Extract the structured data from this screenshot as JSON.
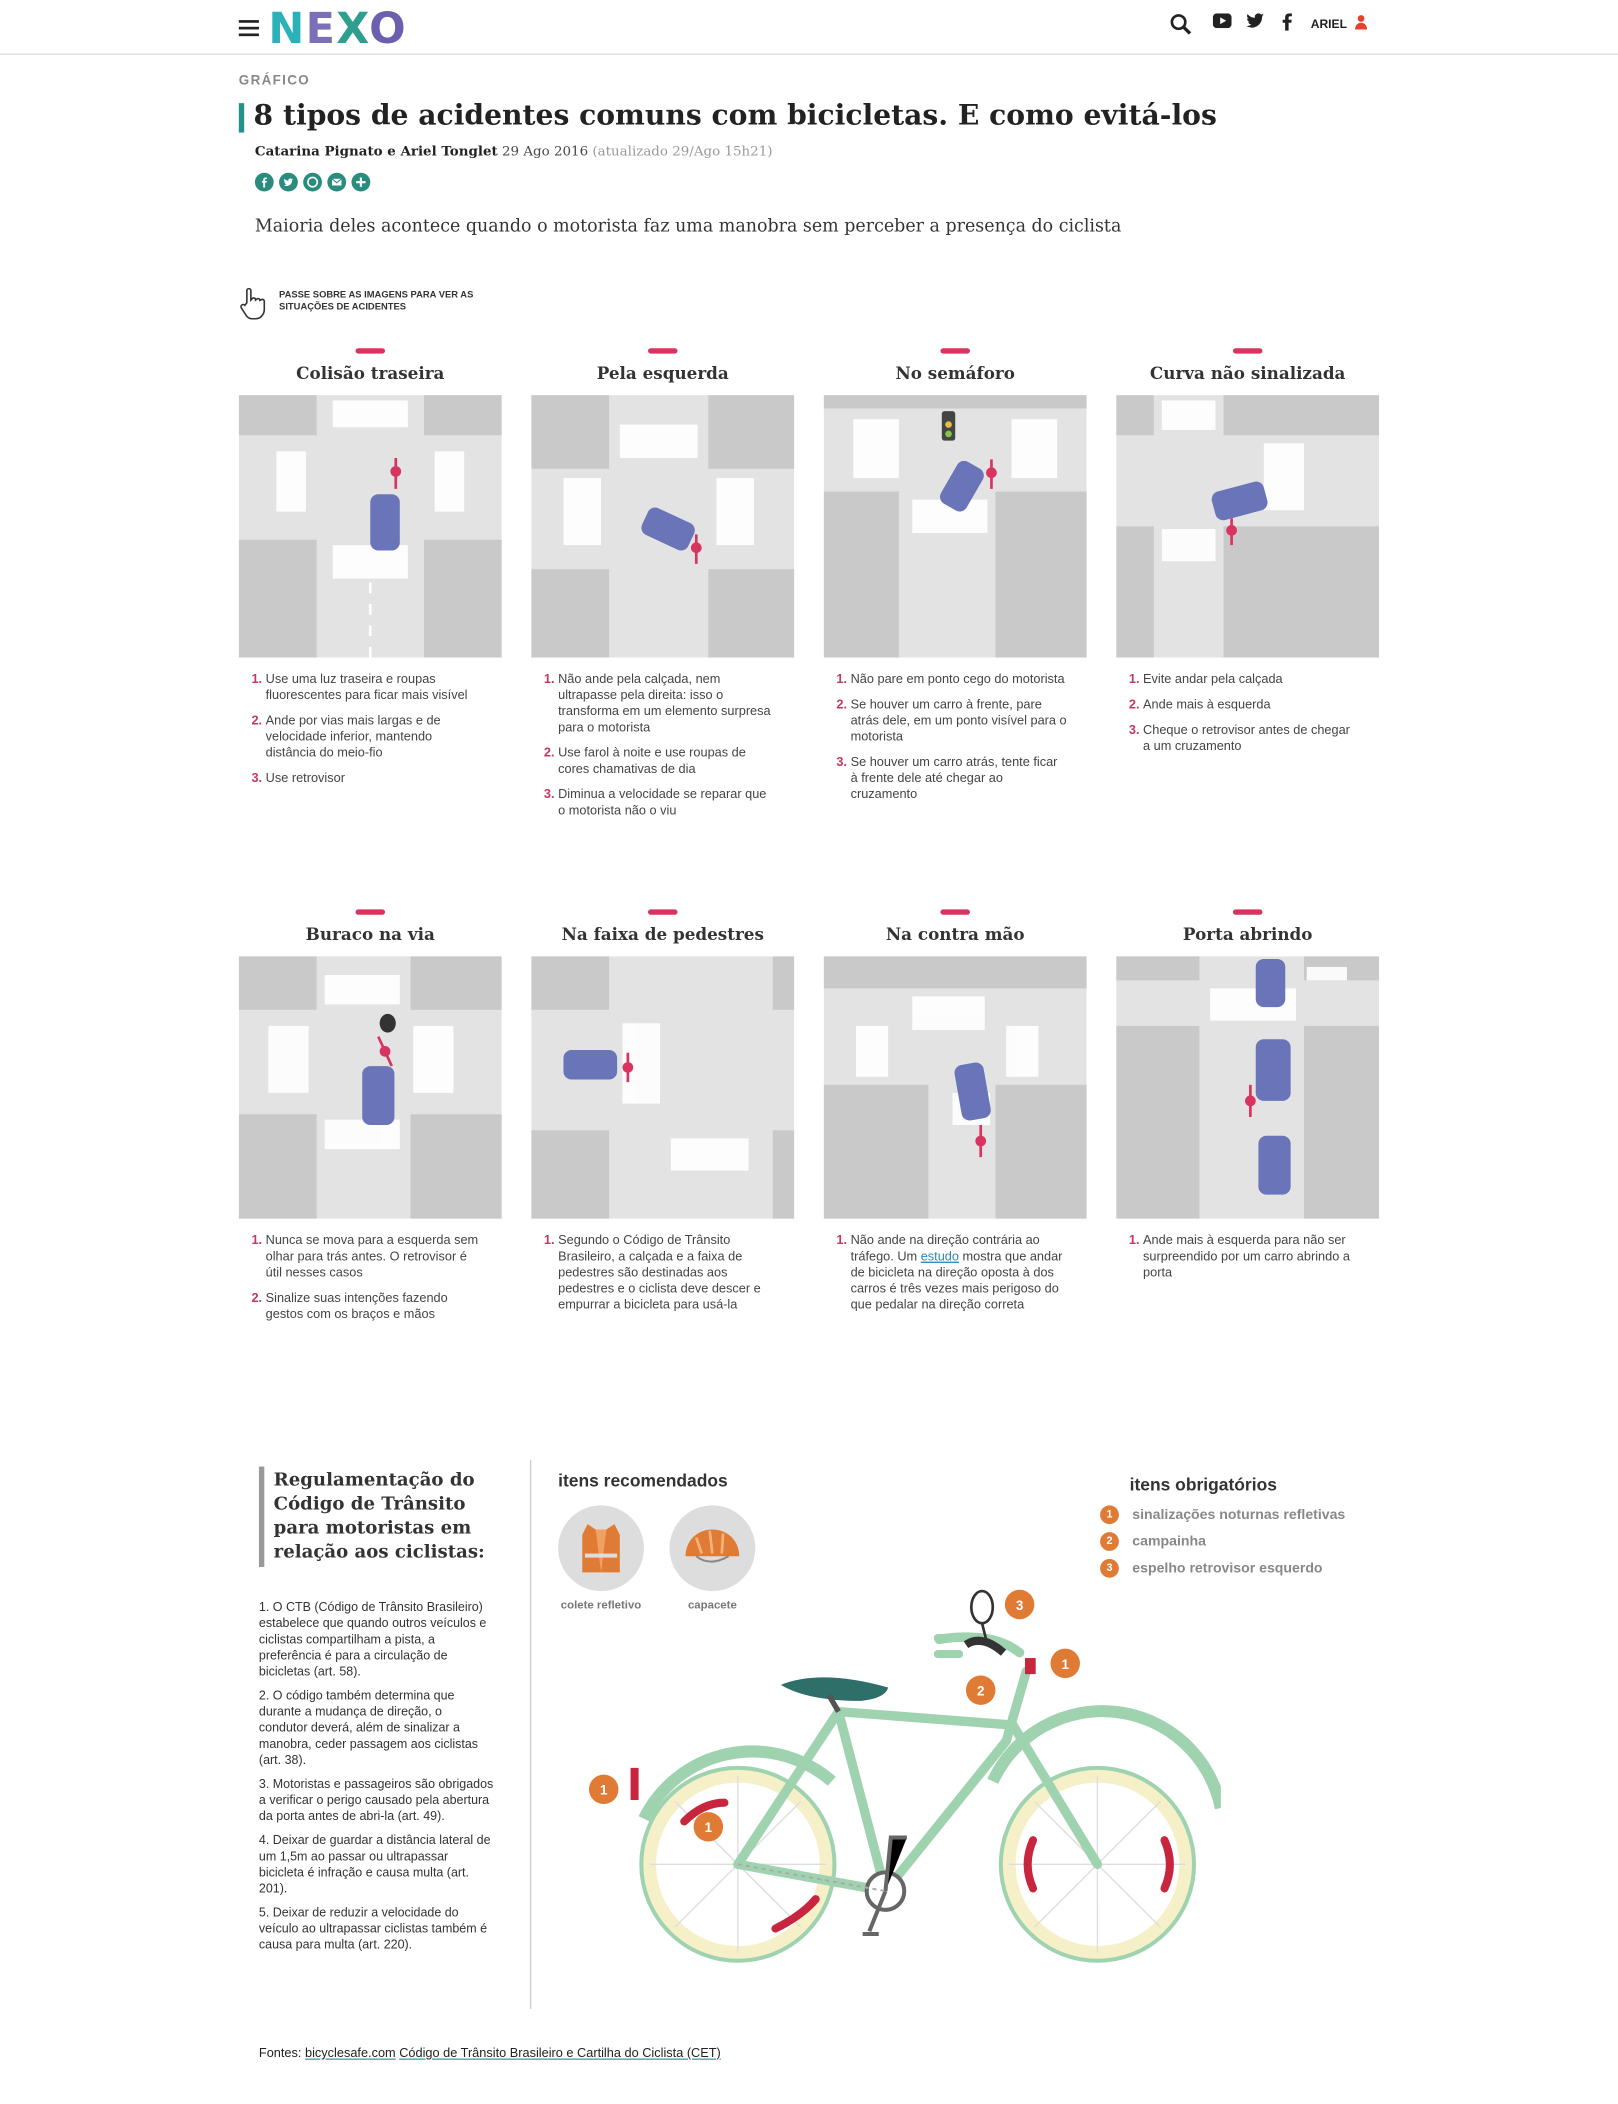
{
  "header": {
    "logo": [
      "N",
      "E",
      "X",
      "O"
    ],
    "user": "ARIEL",
    "icons": [
      "menu-icon",
      "search-icon",
      "youtube-icon",
      "twitter-icon",
      "facebook-icon",
      "user-icon"
    ]
  },
  "article": {
    "kicker": "GRÁFICO",
    "title": "8 tipos de acidentes comuns com bicicletas. E como evitá-los",
    "authors": "Catarina Pignato e Ariel Tonglet",
    "date": "29 Ago 2016",
    "updated": "(atualizado 29/Ago 15h21)",
    "dek": "Maioria deles acontece quando o motorista faz uma manobra sem perceber a presença do ciclista",
    "hint": "PASSE SOBRE AS IMAGENS PARA VER AS SITUAÇÕES DE ACIDENTES"
  },
  "share_icons": [
    "facebook-icon",
    "twitter-icon",
    "whatsapp-icon",
    "email-icon",
    "more-icon"
  ],
  "cards": [
    {
      "title": "Colisão traseira",
      "tips": [
        "Use uma luz traseira e roupas fluorescentes para ficar mais visível",
        "Ande por vias mais largas e de velocidade inferior, mantendo distância do meio-fio",
        "Use retrovisor"
      ]
    },
    {
      "title": "Pela esquerda",
      "tips": [
        "Não ande pela calçada, nem ultrapasse pela direita: isso o transforma em um elemento surpresa para o motorista",
        "Use farol à noite e use roupas de cores chamativas de dia",
        "Diminua a velocidade se reparar que o motorista não o viu"
      ]
    },
    {
      "title": "No semáforo",
      "tips": [
        "Não pare em ponto cego do motorista",
        "Se houver um carro à frente, pare atrás dele, em um ponto visível para o motorista",
        "Se houver um carro atrás, tente ficar à frente dele até chegar ao cruzamento"
      ]
    },
    {
      "title": "Curva não sinalizada",
      "tips": [
        "Evite andar pela calçada",
        "Ande mais à esquerda",
        "Cheque o retrovisor antes de chegar a um cruzamento"
      ]
    },
    {
      "title": "Buraco na via",
      "tips": [
        "Nunca se mova para a esquerda sem olhar para trás antes. O retrovisor é útil nesses casos",
        "Sinalize suas intenções fazendo gestos com os braços e mãos"
      ]
    },
    {
      "title": "Na faixa de pedestres",
      "tips": [
        "Segundo o Código de Trânsito Brasileiro, a calçada e a faixa de pedestres são destinadas aos pedestres e o ciclista deve descer e empurrar a bicicleta para usá-la"
      ]
    },
    {
      "title": "Na contra mão",
      "tip_parts": [
        "Não ande na direção contrária ao tráfego. Um ",
        "estudo",
        " mostra que andar de bicicleta na direção oposta à dos carros é três vezes mais perigoso do que pedalar na direção correta"
      ]
    },
    {
      "title": "Porta abrindo",
      "tips": [
        "Ande mais à esquerda para não ser surpreendido por um carro abrindo a porta"
      ]
    }
  ],
  "regulation": {
    "title": "Regulamentação do Código de Trânsito para motoristas em relação aos ciclistas:",
    "items": [
      "1. O CTB (Código de Trânsito Brasileiro) estabelece que quando outros veículos e ciclistas compartilham a pista, a preferência é para a circulação de bicicletas (art. 58).",
      "2. O código também determina que durante a mudança de direção, o condutor deverá, além de sinalizar a manobra, ceder passagem aos ciclistas (art. 38).",
      "3. Motoristas e passageiros são obrigados a verificar o perigo causado pela abertura da porta antes de abri-la (art. 49).",
      "4. Deixar de guardar a distância lateral de um 1,5m ao passar ou ultrapassar bicicleta é infração e causa multa (art. 201).",
      "5. Deixar de reduzir a velocidade do veículo ao ultrapassar ciclistas também é causa para multa (art. 220)."
    ]
  },
  "recommended": {
    "heading": "itens recomendados",
    "items": [
      "colete refletivo",
      "capacete"
    ]
  },
  "mandatory": {
    "heading": "itens obrigatórios",
    "items": [
      {
        "n": "1",
        "label": "sinalizações noturnas refletivas"
      },
      {
        "n": "2",
        "label": "campainha"
      },
      {
        "n": "3",
        "label": "espelho retrovisor esquerdo"
      }
    ]
  },
  "bike_badges": [
    "3",
    "1",
    "2",
    "1",
    "1"
  ],
  "footer": {
    "label": "Fontes:",
    "links": [
      "bicyclesafe.com",
      "Código de Trânsito Brasileiro e Cartilha do Ciclista (CET)"
    ]
  },
  "colors": {
    "accent": "#d8345f",
    "teal": "#2a8c7e",
    "car": "#6a74b8",
    "road": "#e3e3e3",
    "block": "#c9c9c9",
    "bike": "#9fd3b0",
    "orange": "#e07b35"
  }
}
